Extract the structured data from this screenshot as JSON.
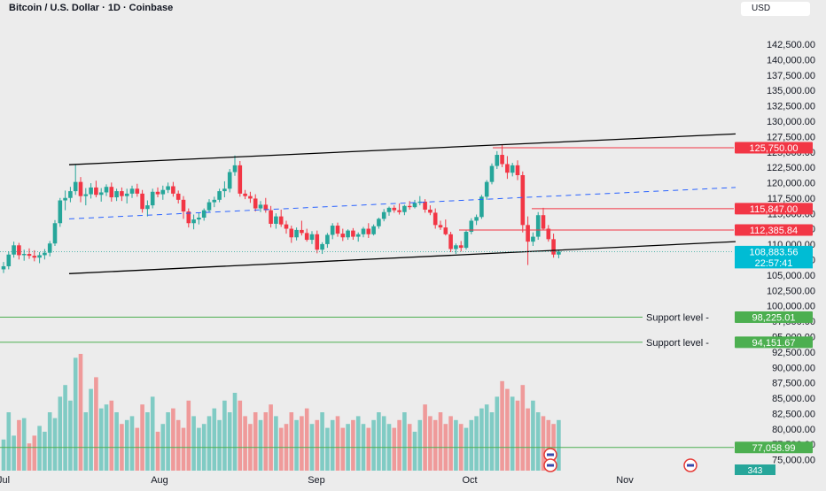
{
  "header": {
    "title": "Bitcoin / U.S. Dollar · 1D · Coinbase",
    "currency_button": "USD"
  },
  "chart_data": {
    "type": "candlestick",
    "price_axis": {
      "tick_labels": [
        "142,500.00",
        "140,000.00",
        "137,500.00",
        "135,000.00",
        "132,500.00",
        "130,000.00",
        "127,500.00",
        "125,000.00",
        "122,500.00",
        "120,000.00",
        "117,500.00",
        "115,000.00",
        "112,500.00",
        "110,000.00",
        "107,500.00",
        "105,000.00",
        "102,500.00",
        "100,000.00",
        "97,500.00",
        "95,000.00",
        "92,500.00",
        "90,000.00",
        "87,500.00",
        "85,000.00",
        "82,500.00",
        "80,000.00",
        "77,500.00",
        "75,000.00"
      ],
      "range": [
        74500,
        144800
      ]
    },
    "time_axis": {
      "labels": [
        "Jul",
        "Aug",
        "Sep",
        "Oct",
        "Nov"
      ]
    },
    "price_labels": [
      {
        "value": 125750,
        "text": "125,750.00",
        "color": "#f23645"
      },
      {
        "value": 115847,
        "text": "115,847.00",
        "color": "#f23645"
      },
      {
        "value": 112385.84,
        "text": "112,385.84",
        "color": "#f23645"
      },
      {
        "value": 108883.56,
        "text": "108,883.56",
        "color": "#00bcd4"
      }
    ],
    "countdown": "22:57:41",
    "support_levels": [
      {
        "label": "Support level",
        "value": 98225.01,
        "text": "98,225.01",
        "color": "#4caf50"
      },
      {
        "label": "Support level",
        "value": 94151.67,
        "text": "94,151.67",
        "color": "#4caf50"
      }
    ],
    "volume_level": {
      "value": 77058.99,
      "text": "77,058.99",
      "color": "#4caf50"
    },
    "volume_badge": {
      "text": "343",
      "color": "#26a69a"
    },
    "channel": {
      "upper_start": 123000,
      "upper_end": 128000,
      "lower_start": 105300,
      "lower_end": 110500,
      "mid_start": 114200,
      "mid_end": 119300
    },
    "candles_ohlc": [
      [
        106000,
        107200,
        105400,
        106500
      ],
      [
        106500,
        108900,
        106000,
        108400
      ],
      [
        108400,
        110500,
        107900,
        109900
      ],
      [
        109900,
        110300,
        107600,
        108300
      ],
      [
        108300,
        109200,
        107400,
        108500
      ],
      [
        108500,
        109400,
        107700,
        108200
      ],
      [
        108200,
        109100,
        107300,
        107900
      ],
      [
        107900,
        108800,
        107000,
        108300
      ],
      [
        108300,
        109300,
        107600,
        108700
      ],
      [
        108700,
        110600,
        108100,
        110200
      ],
      [
        110200,
        114000,
        109800,
        113500
      ],
      [
        113500,
        117600,
        112900,
        117200
      ],
      [
        117200,
        118800,
        115600,
        117600
      ],
      [
        117600,
        119400,
        116900,
        118700
      ],
      [
        118700,
        123100,
        118100,
        120200
      ],
      [
        120200,
        121000,
        116900,
        117900
      ],
      [
        117900,
        119200,
        116400,
        118200
      ],
      [
        118200,
        120000,
        117500,
        119300
      ],
      [
        119300,
        120400,
        117700,
        118100
      ],
      [
        118100,
        119200,
        117000,
        118500
      ],
      [
        118500,
        119800,
        117900,
        119400
      ],
      [
        119400,
        120100,
        117000,
        117700
      ],
      [
        117700,
        119100,
        117100,
        118700
      ],
      [
        118700,
        119300,
        117100,
        117900
      ],
      [
        117900,
        119100,
        116700,
        118300
      ],
      [
        118300,
        119600,
        117600,
        119100
      ],
      [
        119100,
        119900,
        117800,
        118300
      ],
      [
        118300,
        118900,
        115200,
        115800
      ],
      [
        115800,
        117200,
        114600,
        116400
      ],
      [
        116400,
        119100,
        115900,
        118600
      ],
      [
        118600,
        119300,
        117700,
        118200
      ],
      [
        118200,
        119600,
        117300,
        118900
      ],
      [
        118900,
        120100,
        118400,
        119500
      ],
      [
        119500,
        120200,
        117800,
        118300
      ],
      [
        118300,
        118800,
        116700,
        117300
      ],
      [
        117300,
        117900,
        114200,
        115400
      ],
      [
        115400,
        115900,
        112800,
        113500
      ],
      [
        113500,
        114900,
        112500,
        114100
      ],
      [
        114100,
        115200,
        113300,
        114400
      ],
      [
        114400,
        115900,
        113900,
        115600
      ],
      [
        115600,
        117400,
        115200,
        116900
      ],
      [
        116900,
        117800,
        116100,
        117300
      ],
      [
        117300,
        119100,
        116900,
        118700
      ],
      [
        118700,
        120300,
        117700,
        119100
      ],
      [
        119100,
        122300,
        118500,
        121800
      ],
      [
        121800,
        124500,
        121200,
        122900
      ],
      [
        122900,
        123600,
        117800,
        118300
      ],
      [
        118300,
        118900,
        117400,
        117900
      ],
      [
        117900,
        118600,
        116800,
        117500
      ],
      [
        117500,
        118200,
        115400,
        115900
      ],
      [
        115900,
        117100,
        115300,
        116500
      ],
      [
        116500,
        117600,
        115200,
        115600
      ],
      [
        115600,
        116300,
        112800,
        113400
      ],
      [
        113400,
        115100,
        112600,
        114600
      ],
      [
        114600,
        115700,
        112900,
        113300
      ],
      [
        113300,
        113900,
        111800,
        112600
      ],
      [
        112600,
        113100,
        110300,
        111200
      ],
      [
        111200,
        112800,
        110700,
        112400
      ],
      [
        112400,
        113900,
        111500,
        111900
      ],
      [
        111900,
        112600,
        110500,
        110800
      ],
      [
        110800,
        112200,
        110100,
        111700
      ],
      [
        111700,
        112300,
        108600,
        109200
      ],
      [
        109200,
        110400,
        108500,
        110100
      ],
      [
        110100,
        111900,
        109500,
        111600
      ],
      [
        111600,
        113500,
        110900,
        113100
      ],
      [
        113100,
        113600,
        111300,
        111800
      ],
      [
        111800,
        112600,
        110600,
        111200
      ],
      [
        111200,
        112500,
        110800,
        112300
      ],
      [
        112300,
        112700,
        110800,
        111300
      ],
      [
        111300,
        112000,
        110500,
        111700
      ],
      [
        111700,
        112900,
        111200,
        112600
      ],
      [
        112600,
        113500,
        111100,
        111700
      ],
      [
        111700,
        113300,
        111500,
        113000
      ],
      [
        113000,
        114400,
        112600,
        114200
      ],
      [
        114200,
        115800,
        113800,
        115300
      ],
      [
        115300,
        116200,
        114700,
        116000
      ],
      [
        116000,
        116400,
        115200,
        115600
      ],
      [
        115600,
        116700,
        114900,
        115300
      ],
      [
        115300,
        116500,
        114800,
        116300
      ],
      [
        116300,
        117100,
        115700,
        116100
      ],
      [
        116100,
        117300,
        115900,
        116800
      ],
      [
        116800,
        117900,
        116400,
        117000
      ],
      [
        117000,
        117400,
        115200,
        115700
      ],
      [
        115700,
        116400,
        114800,
        115200
      ],
      [
        115200,
        115900,
        112600,
        113200
      ],
      [
        113200,
        113900,
        112400,
        112800
      ],
      [
        112800,
        114100,
        111500,
        111700
      ],
      [
        111700,
        112100,
        108800,
        109300
      ],
      [
        109300,
        110200,
        108500,
        109900
      ],
      [
        109900,
        110600,
        108900,
        109500
      ],
      [
        109500,
        112300,
        109200,
        112100
      ],
      [
        112100,
        114300,
        111700,
        113900
      ],
      [
        113900,
        114900,
        113200,
        114500
      ],
      [
        114500,
        118100,
        114200,
        117800
      ],
      [
        117800,
        120500,
        117300,
        120200
      ],
      [
        120200,
        123200,
        119800,
        122800
      ],
      [
        122800,
        125200,
        122300,
        124600
      ],
      [
        124600,
        126200,
        122600,
        123100
      ],
      [
        123100,
        124400,
        120700,
        121700
      ],
      [
        121700,
        123300,
        121100,
        122900
      ],
      [
        122900,
        123700,
        120500,
        121300
      ],
      [
        121300,
        121900,
        112000,
        113200
      ],
      [
        113200,
        114600,
        106700,
        110500
      ],
      [
        110500,
        112000,
        109800,
        111300
      ],
      [
        111300,
        115300,
        110800,
        114800
      ],
      [
        114800,
        116000,
        112400,
        112600
      ],
      [
        112600,
        113200,
        110500,
        110900
      ],
      [
        110900,
        111800,
        107900,
        108400
      ],
      [
        108400,
        109200,
        107800,
        108883
      ]
    ],
    "volumes": [
      16,
      30,
      18,
      26,
      27,
      14,
      18,
      23,
      20,
      30,
      27,
      38,
      44,
      36,
      58,
      60,
      30,
      42,
      48,
      32,
      34,
      36,
      30,
      24,
      26,
      28,
      22,
      34,
      30,
      38,
      20,
      24,
      30,
      32,
      26,
      22,
      36,
      28,
      22,
      24,
      28,
      32,
      26,
      36,
      30,
      40,
      36,
      28,
      24,
      30,
      26,
      30,
      34,
      28,
      22,
      24,
      30,
      26,
      28,
      32,
      24,
      26,
      30,
      22,
      26,
      28,
      22,
      24,
      26,
      28,
      24,
      22,
      26,
      30,
      28,
      24,
      22,
      26,
      30,
      24,
      20,
      26,
      34,
      28,
      26,
      30,
      24,
      28,
      26,
      24,
      22,
      26,
      28,
      32,
      34,
      30,
      38,
      46,
      42,
      38,
      36,
      44,
      32,
      36,
      30,
      28,
      26,
      24,
      26
    ]
  }
}
